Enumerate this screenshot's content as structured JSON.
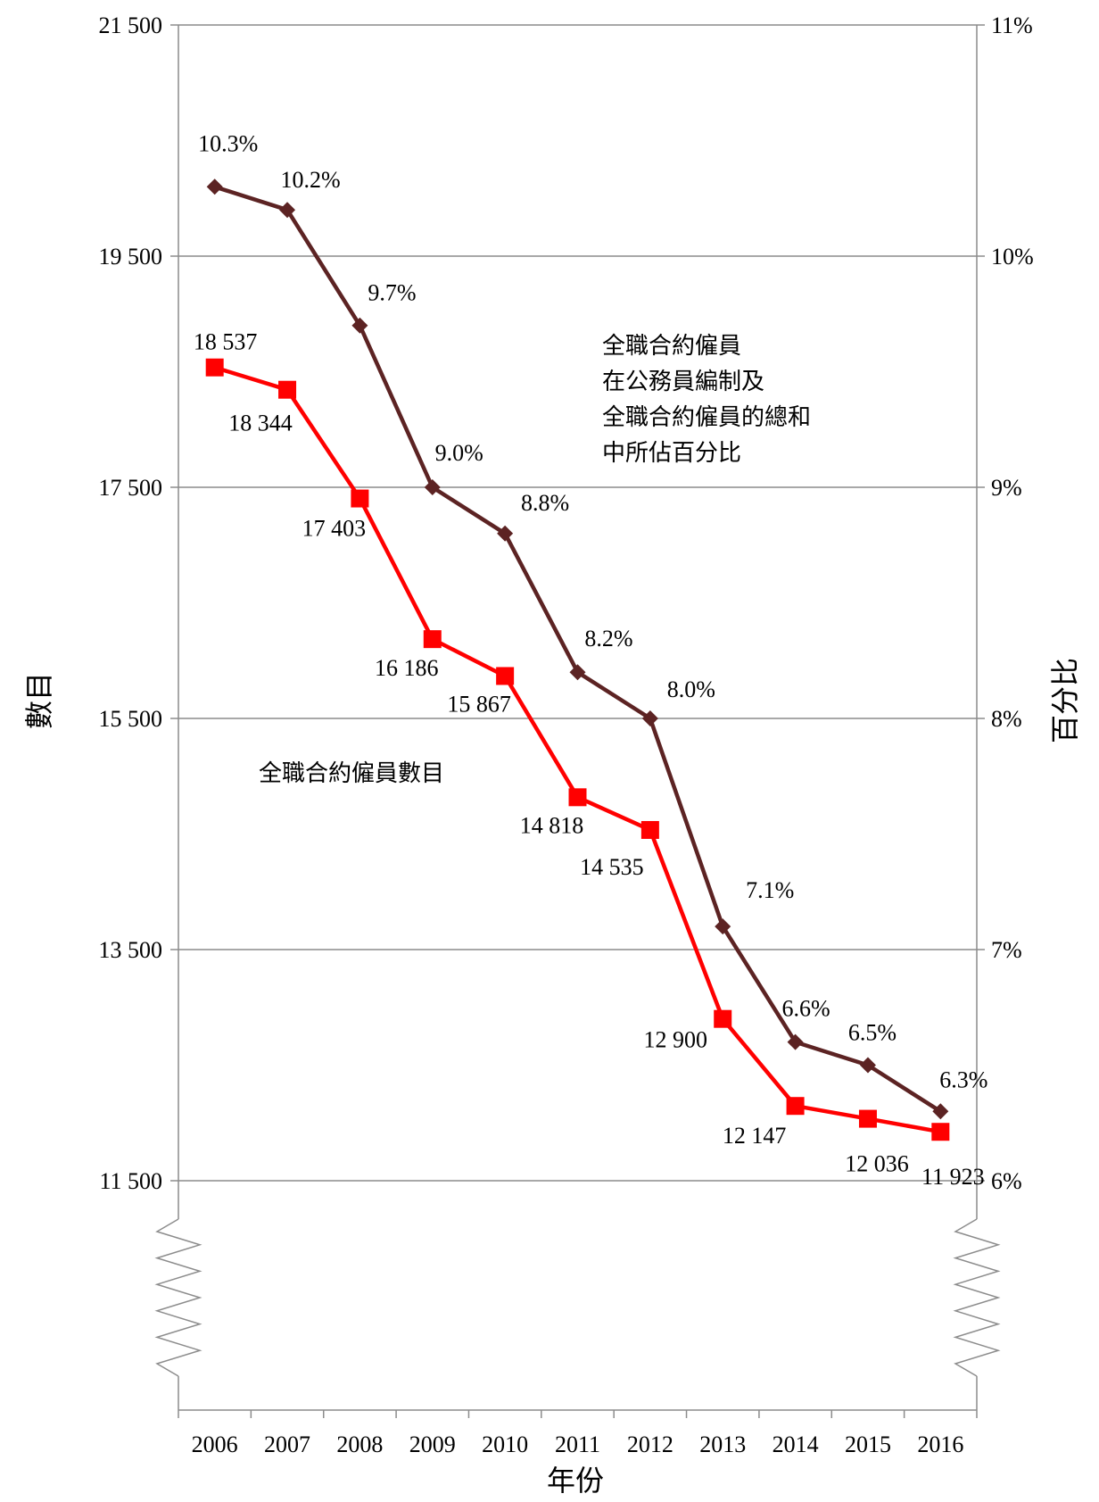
{
  "chart_data": {
    "type": "line",
    "categories": [
      "2006",
      "2007",
      "2008",
      "2009",
      "2010",
      "2011",
      "2012",
      "2013",
      "2014",
      "2015",
      "2016"
    ],
    "xlabel": "年份",
    "ylabel": "數目",
    "y2label": "百分比",
    "ylim": [
      11500,
      21500
    ],
    "y2lim": [
      6,
      11
    ],
    "y_ticks": [
      "11 500",
      "13 500",
      "15 500",
      "17 500",
      "19 500",
      "21 500"
    ],
    "y2_ticks": [
      "6%",
      "7%",
      "8%",
      "9%",
      "10%",
      "11%"
    ],
    "grid": true,
    "axis_break": true,
    "series": [
      {
        "name": "全職合約僱員數目",
        "axis": "left",
        "color": "#ff0000",
        "marker": "square",
        "values": [
          18537,
          18344,
          17403,
          16186,
          15867,
          14818,
          14535,
          12900,
          12147,
          12036,
          11923
        ],
        "labels": [
          "18 537",
          "18 344",
          "17 403",
          "16 186",
          "15 867",
          "14 818",
          "14 535",
          "12 900",
          "12 147",
          "12 036",
          "11 923"
        ]
      },
      {
        "name": "全職合約僱員在公務員編制及全職合約僱員的總和中所佔百分比",
        "axis": "right",
        "color": "#5c2323",
        "marker": "diamond",
        "values": [
          10.3,
          10.2,
          9.7,
          9.0,
          8.8,
          8.2,
          8.0,
          7.1,
          6.6,
          6.5,
          6.3
        ],
        "labels": [
          "10.3%",
          "10.2%",
          "9.7%",
          "9.0%",
          "8.8%",
          "8.2%",
          "8.0%",
          "7.1%",
          "6.6%",
          "6.5%",
          "6.3%"
        ]
      }
    ],
    "annotations": {
      "count_series": "全職合約僱員數目",
      "percent_series_lines": [
        "全職合約僱員",
        "在公務員編制及",
        "全職合約僱員的總和",
        "中所佔百分比"
      ]
    }
  }
}
